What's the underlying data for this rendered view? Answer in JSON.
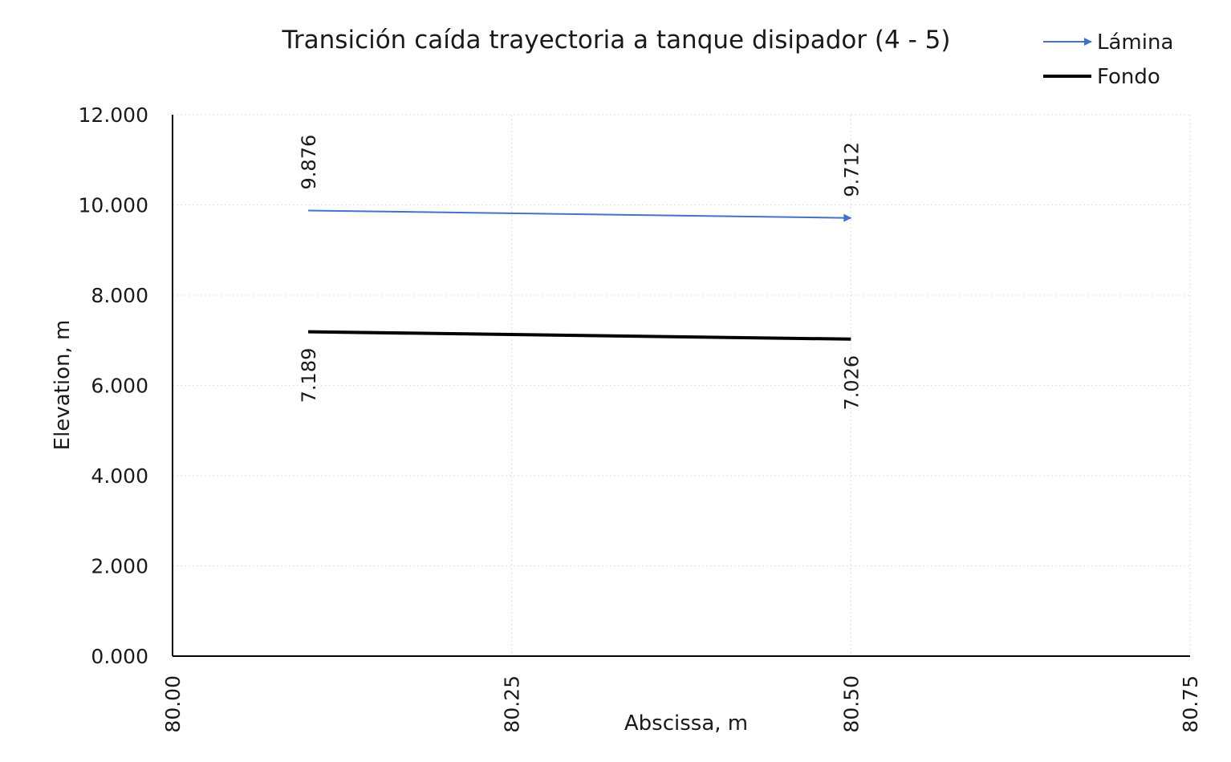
{
  "chart_data": {
    "type": "line",
    "title": "Transición caída trayectoria a tanque disipador (4 - 5)",
    "xlabel": "Abscissa, m",
    "ylabel": "Elevation, m",
    "xlim": [
      80.0,
      80.75
    ],
    "ylim": [
      0,
      12
    ],
    "x_ticks": [
      "80.00",
      "80.25",
      "80.50",
      "80.75"
    ],
    "x_tick_values": [
      80.0,
      80.25,
      80.5,
      80.75
    ],
    "y_ticks": [
      "0.000",
      "2.000",
      "4.000",
      "6.000",
      "8.000",
      "10.000",
      "12.000"
    ],
    "y_tick_values": [
      0,
      2,
      4,
      6,
      8,
      10,
      12
    ],
    "grid": true,
    "legend_position": "top-right",
    "series": [
      {
        "name": "Lámina",
        "color": "#4472c4",
        "marker": "arrow-end",
        "x": [
          80.1,
          80.5
        ],
        "y": [
          9.876,
          9.712
        ],
        "labels": [
          "9.876",
          "9.712"
        ]
      },
      {
        "name": "Fondo",
        "color": "#000000",
        "marker": "none",
        "x": [
          80.1,
          80.5
        ],
        "y": [
          7.189,
          7.026
        ],
        "labels": [
          "7.189",
          "7.026"
        ]
      }
    ]
  }
}
